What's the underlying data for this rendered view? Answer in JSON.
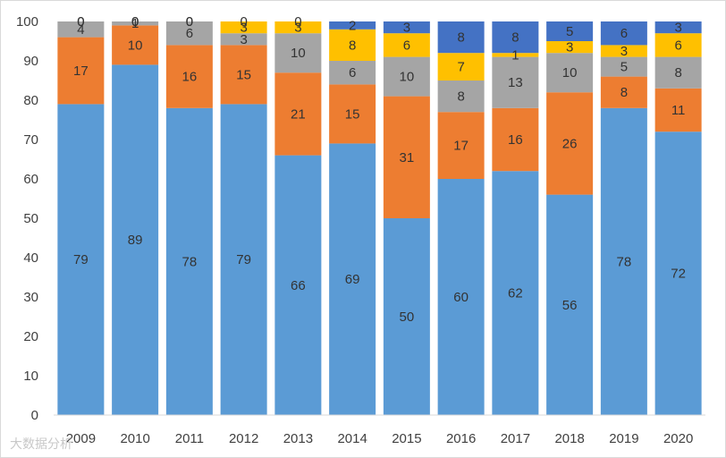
{
  "chart_data": {
    "type": "bar",
    "stacked": true,
    "title": "",
    "xlabel": "",
    "ylabel": "",
    "ylim": [
      0,
      100
    ],
    "yticks": [
      0,
      10,
      20,
      30,
      40,
      50,
      60,
      70,
      80,
      90,
      100
    ],
    "grid": false,
    "legend": "none",
    "categories": [
      "2009",
      "2010",
      "2011",
      "2012",
      "2013",
      "2014",
      "2015",
      "2016",
      "2017",
      "2018",
      "2019",
      "2020"
    ],
    "series": [
      {
        "name": "series-1",
        "color": "#5b9bd5",
        "values": [
          79,
          89,
          78,
          79,
          66,
          69,
          50,
          60,
          62,
          56,
          78,
          72
        ]
      },
      {
        "name": "series-2",
        "color": "#ed7d31",
        "values": [
          17,
          10,
          16,
          15,
          21,
          15,
          31,
          17,
          16,
          26,
          8,
          11
        ]
      },
      {
        "name": "series-3",
        "color": "#a5a5a5",
        "values": [
          4,
          1,
          6,
          3,
          10,
          6,
          10,
          8,
          13,
          10,
          5,
          8
        ]
      },
      {
        "name": "series-4",
        "color": "#ffc000",
        "values": [
          0,
          0,
          0,
          3,
          3,
          8,
          6,
          7,
          1,
          3,
          3,
          6
        ]
      },
      {
        "name": "series-5",
        "color": "#4472c4",
        "values": [
          0,
          0,
          0,
          0,
          0,
          2,
          3,
          8,
          8,
          5,
          6,
          3
        ]
      }
    ]
  },
  "watermark": "大数据分析"
}
